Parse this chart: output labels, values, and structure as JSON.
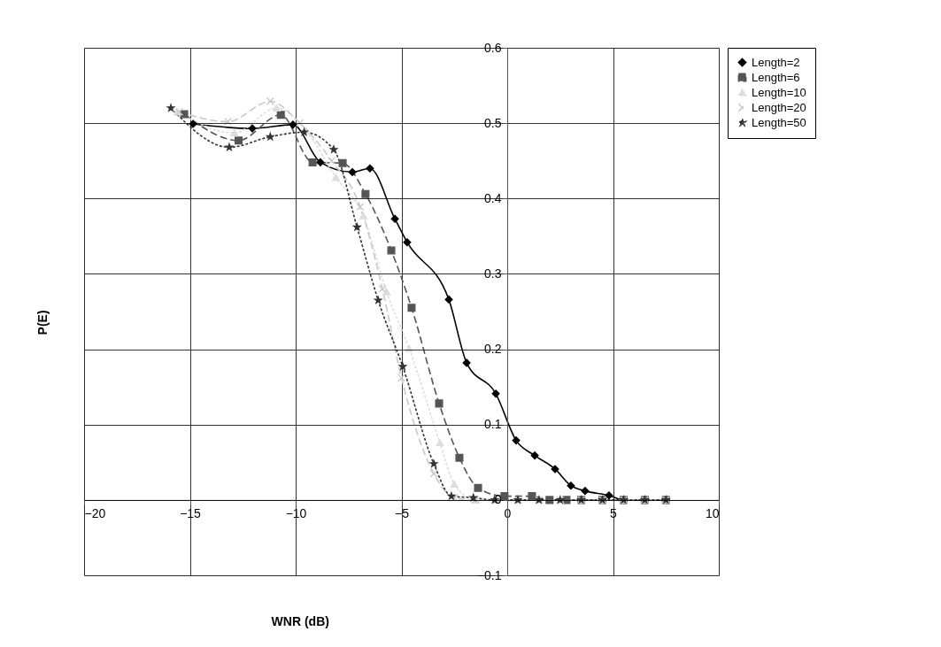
{
  "chart_data": {
    "type": "line",
    "xlabel": "WNR (dB)",
    "ylabel": "P(E)",
    "xlim": [
      -20,
      10
    ],
    "ylim": [
      -0.1,
      0.6
    ],
    "xticks": [
      -20,
      -15,
      -10,
      -5,
      0,
      5,
      10
    ],
    "yticks": [
      -0.1,
      0,
      0.1,
      0.2,
      0.3,
      0.4,
      0.5,
      0.6
    ],
    "grid": true,
    "legend": "right",
    "series": [
      {
        "name": "Length=2",
        "color": "#000000",
        "marker": "diamond",
        "line_style": "solid",
        "x": [
          -14.85,
          -12.05,
          -10.13,
          -8.83,
          -7.32,
          -6.49,
          -5.31,
          -4.73,
          -2.76,
          -1.92,
          -0.54,
          0.42,
          1.3,
          2.26,
          3.01,
          3.68,
          4.81,
          5.5,
          6.5,
          7.5
        ],
        "values": [
          0.499,
          0.493,
          0.498,
          0.448,
          0.435,
          0.44,
          0.373,
          0.342,
          0.266,
          0.182,
          0.141,
          0.079,
          0.059,
          0.041,
          0.019,
          0.012,
          0.006,
          0,
          0,
          0
        ]
      },
      {
        "name": "Length=6",
        "color": "#555555",
        "marker": "square",
        "line_style": "dashed",
        "x": [
          -15.27,
          -12.7,
          -10.7,
          -9.2,
          -7.78,
          -6.7,
          -5.48,
          -4.52,
          -3.22,
          -2.26,
          -1.38,
          -0.13,
          1.17,
          2.0,
          2.8,
          3.5,
          4.5,
          5.5,
          6.5,
          7.5
        ],
        "values": [
          0.512,
          0.477,
          0.511,
          0.448,
          0.447,
          0.406,
          0.331,
          0.255,
          0.128,
          0.056,
          0.016,
          0.005,
          0.005,
          0,
          0,
          0,
          0,
          0,
          0,
          0
        ]
      },
      {
        "name": "Length=10",
        "color": "#dddddd",
        "marker": "triangle",
        "line_style": "dotted",
        "x": [
          -15.6,
          -12.9,
          -10.9,
          -9.5,
          -8.1,
          -6.8,
          -5.7,
          -4.64,
          -3.18,
          -2.5,
          -1.5,
          -0.5,
          0.5,
          1.5,
          2.5,
          3.5,
          4.5,
          5.5,
          6.5,
          7.5
        ],
        "values": [
          0.515,
          0.487,
          0.52,
          0.49,
          0.428,
          0.377,
          0.276,
          0.201,
          0.076,
          0.021,
          0,
          0,
          0,
          0,
          0,
          0,
          0,
          0,
          0,
          0
        ]
      },
      {
        "name": "Length=20",
        "color": "#c8c8c8",
        "marker": "cross",
        "line_style": "dashed",
        "x": [
          -15.5,
          -13.2,
          -11.2,
          -9.8,
          -8.3,
          -6.95,
          -5.9,
          -5.0,
          -3.47,
          -2.5,
          -1.5,
          -0.5,
          0.5,
          1.5,
          2.5,
          3.5,
          4.5,
          5.5,
          6.5,
          7.5
        ],
        "values": [
          0.515,
          0.502,
          0.529,
          0.5,
          0.45,
          0.389,
          0.28,
          0.162,
          0.035,
          0.003,
          0,
          0,
          0,
          0,
          0,
          0,
          0,
          0,
          0,
          0
        ]
      },
      {
        "name": "Length=50",
        "color": "#333333",
        "marker": "star",
        "line_style": "dotted",
        "x": [
          -15.9,
          -13.14,
          -11.2,
          -9.6,
          -8.2,
          -7.1,
          -6.1,
          -4.94,
          -3.47,
          -2.64,
          -1.6,
          -0.6,
          0.5,
          1.5,
          2.5,
          3.5,
          4.5,
          5.5,
          6.5,
          7.5
        ],
        "values": [
          0.52,
          0.468,
          0.482,
          0.488,
          0.465,
          0.362,
          0.265,
          0.177,
          0.048,
          0.005,
          0.003,
          0,
          0,
          0,
          0,
          0,
          0,
          0,
          0,
          0
        ]
      }
    ]
  }
}
